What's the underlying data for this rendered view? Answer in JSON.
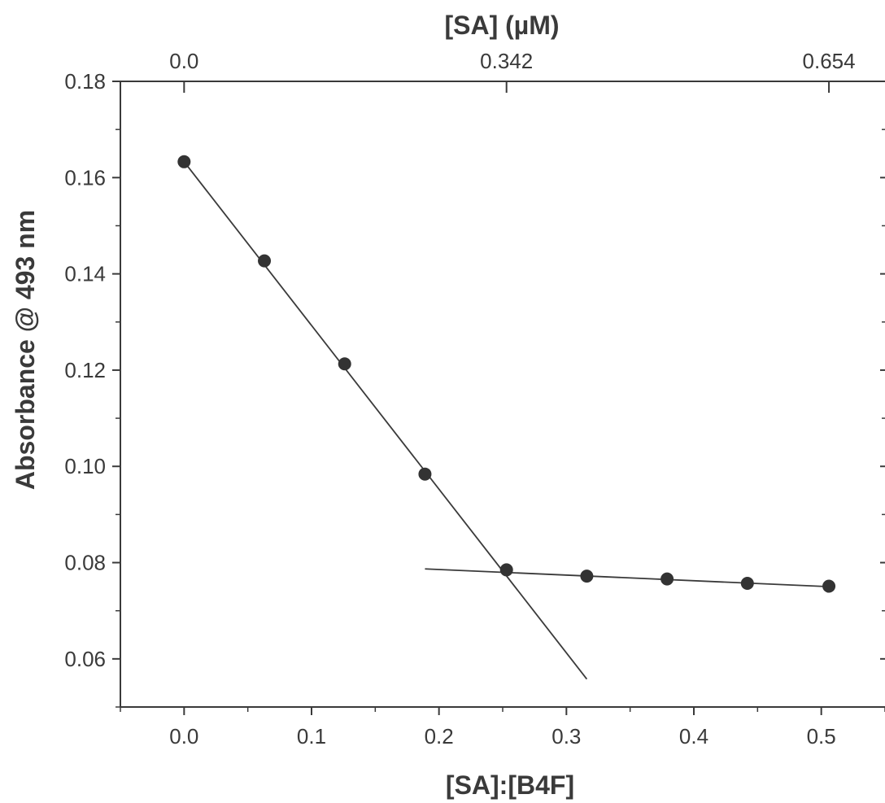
{
  "chart_data": {
    "type": "scatter",
    "title": "",
    "xlabel": "[SA]:[B4F]",
    "ylabel": "Absorbance @ 493 nm",
    "top_xlabel": "[SA] (µM)",
    "xlim": [
      -0.05,
      0.55
    ],
    "ylim": [
      0.05,
      0.18
    ],
    "x_ticks": [
      "0.0",
      "0.1",
      "0.2",
      "0.3",
      "0.4",
      "0.5"
    ],
    "y_ticks": [
      "0.06",
      "0.08",
      "0.10",
      "0.12",
      "0.14",
      "0.16",
      "0.18"
    ],
    "top_ticks": [
      {
        "x": 0.0,
        "label": "0.0"
      },
      {
        "x": 0.253,
        "label": "0.342"
      },
      {
        "x": 0.506,
        "label": "0.654"
      }
    ],
    "grid": false,
    "series": [
      {
        "points": [
          {
            "x": 0.0,
            "y": 0.1633
          },
          {
            "x": 0.063,
            "y": 0.1427
          },
          {
            "x": 0.126,
            "y": 0.1213
          },
          {
            "x": 0.189,
            "y": 0.0984
          },
          {
            "x": 0.253,
            "y": 0.0785
          },
          {
            "x": 0.316,
            "y": 0.0772
          },
          {
            "x": 0.379,
            "y": 0.0766
          },
          {
            "x": 0.442,
            "y": 0.0757
          },
          {
            "x": 0.506,
            "y": 0.0751
          }
        ]
      }
    ],
    "fit_lines": [
      {
        "x0": 0.0,
        "y0": 0.1633,
        "x1": 0.316,
        "y1": 0.0558
      },
      {
        "x0": 0.189,
        "y0": 0.0787,
        "x1": 0.506,
        "y1": 0.075
      }
    ]
  }
}
